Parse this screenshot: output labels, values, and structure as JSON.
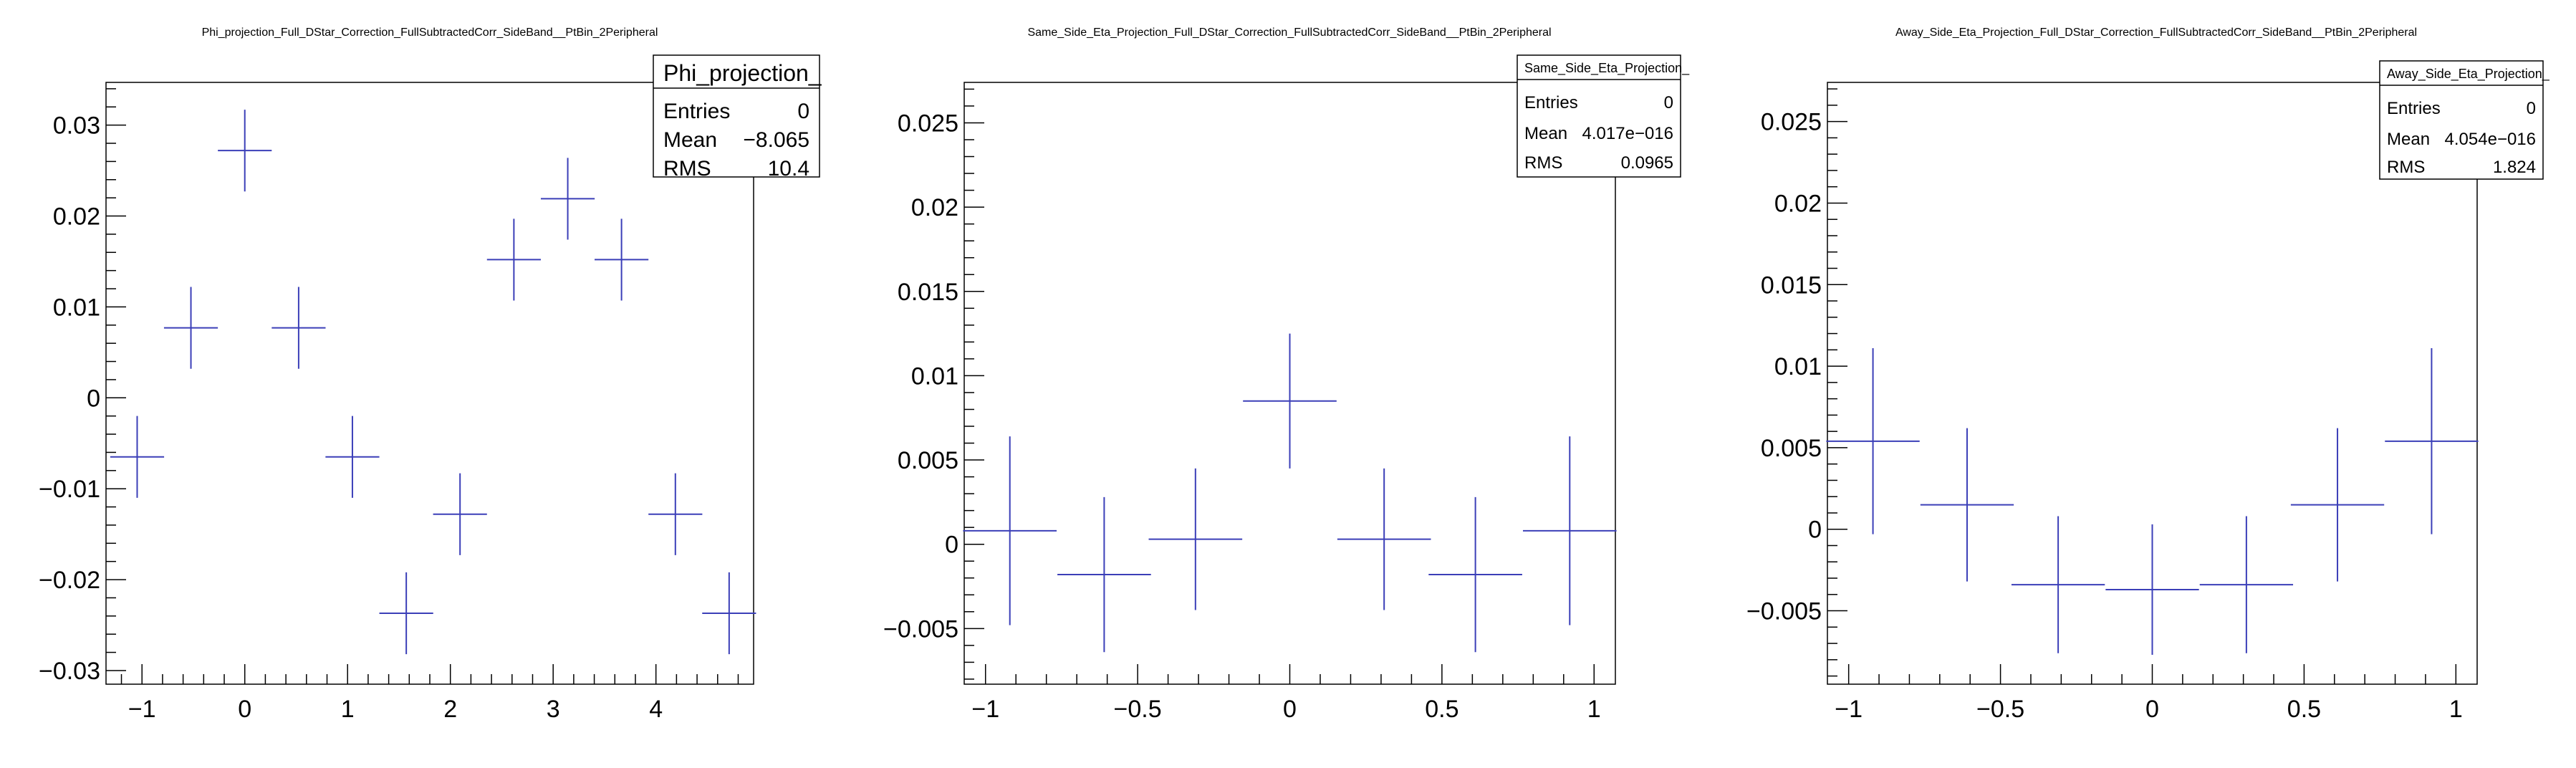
{
  "chart_data": [
    {
      "type": "scatter",
      "title": "Phi_projection_Full_DStar_Correction_FullSubtractedCorr_SideBand__PtBin_2Peripheral",
      "xlim": [
        -1.35,
        4.95
      ],
      "ylim": [
        -0.0315,
        0.0347
      ],
      "xticks": [
        -1,
        0,
        1,
        2,
        3,
        4
      ],
      "xtick_labels": [
        "−1",
        "0",
        "1",
        "2",
        "3",
        "4"
      ],
      "yticks": [
        -0.03,
        -0.02,
        -0.01,
        0,
        0.01,
        0.02,
        0.03
      ],
      "ytick_labels": [
        "−0.03",
        "−0.02",
        "−0.01",
        "0",
        "0.01",
        "0.02",
        "0.03"
      ],
      "xminor": 0.2,
      "yminor": 0.002,
      "stats": {
        "name": "Phi_projection_",
        "rows": [
          {
            "label": "Entries",
            "value": "0"
          },
          {
            "label": "Mean",
            "value": "−8.065"
          },
          {
            "label": "RMS",
            "value": "10.4"
          }
        ],
        "big": true
      },
      "bin_width": 0.524,
      "series": [
        {
          "color": "#3b3fb8",
          "points": [
            {
              "x": -1.047,
              "y": -0.0065,
              "yerr": 0.0045
            },
            {
              "x": -0.524,
              "y": 0.0077,
              "yerr": 0.0045
            },
            {
              "x": 0.0,
              "y": 0.0272,
              "yerr": 0.0045
            },
            {
              "x": 0.524,
              "y": 0.0077,
              "yerr": 0.0045
            },
            {
              "x": 1.047,
              "y": -0.0065,
              "yerr": 0.0045
            },
            {
              "x": 1.571,
              "y": -0.0237,
              "yerr": 0.0045
            },
            {
              "x": 2.094,
              "y": -0.0128,
              "yerr": 0.0045
            },
            {
              "x": 2.618,
              "y": 0.0152,
              "yerr": 0.0045
            },
            {
              "x": 3.142,
              "y": 0.0219,
              "yerr": 0.0045
            },
            {
              "x": 3.665,
              "y": 0.0152,
              "yerr": 0.0045
            },
            {
              "x": 4.189,
              "y": -0.0128,
              "yerr": 0.0045
            },
            {
              "x": 4.712,
              "y": -0.0237,
              "yerr": 0.0045
            }
          ]
        }
      ]
    },
    {
      "type": "scatter",
      "title": "Same_Side_Eta_Projection_Full_DStar_Correction_FullSubtractedCorr_SideBand__PtBin_2Peripheral",
      "xlim": [
        -1.07,
        1.07
      ],
      "ylim": [
        -0.0083,
        0.0274
      ],
      "xticks": [
        -1,
        -0.5,
        0,
        0.5,
        1
      ],
      "xtick_labels": [
        "−1",
        "−0.5",
        "0",
        "0.5",
        "1"
      ],
      "yticks": [
        -0.005,
        0,
        0.005,
        0.01,
        0.015,
        0.02,
        0.025
      ],
      "ytick_labels": [
        "−0.005",
        "0",
        "0.005",
        "0.01",
        "0.015",
        "0.02",
        "0.025"
      ],
      "xminor": 0.1,
      "yminor": 0.001,
      "stats": {
        "name": "Same_Side_Eta_Projection_",
        "rows": [
          {
            "label": "Entries",
            "value": "0"
          },
          {
            "label": "Mean",
            "value": "4.017e−016"
          },
          {
            "label": "RMS",
            "value": "0.0965"
          }
        ],
        "big": false
      },
      "bin_width": 0.3075,
      "series": [
        {
          "color": "#3b3fb8",
          "points": [
            {
              "x": -0.92,
              "y": 0.0008,
              "yerr": 0.0056
            },
            {
              "x": -0.61,
              "y": -0.0018,
              "yerr": 0.0046
            },
            {
              "x": -0.31,
              "y": 0.0003,
              "yerr": 0.0042
            },
            {
              "x": 0.0,
              "y": 0.0085,
              "yerr": 0.004
            },
            {
              "x": 0.31,
              "y": 0.0003,
              "yerr": 0.0042
            },
            {
              "x": 0.61,
              "y": -0.0018,
              "yerr": 0.0046
            },
            {
              "x": 0.92,
              "y": 0.0008,
              "yerr": 0.0056
            }
          ]
        }
      ]
    },
    {
      "type": "scatter",
      "title": "Away_Side_Eta_Projection_Full_DStar_Correction_FullSubtractedCorr_SideBand__PtBin_2Peripheral",
      "xlim": [
        -1.07,
        1.07
      ],
      "ylim": [
        -0.0095,
        0.0274
      ],
      "xticks": [
        -1,
        -0.5,
        0,
        0.5,
        1
      ],
      "xtick_labels": [
        "−1",
        "−0.5",
        "0",
        "0.5",
        "1"
      ],
      "yticks": [
        -0.005,
        0,
        0.005,
        0.01,
        0.015,
        0.02,
        0.025
      ],
      "ytick_labels": [
        "−0.005",
        "0",
        "0.005",
        "0.01",
        "0.015",
        "0.02",
        "0.025"
      ],
      "xminor": 0.1,
      "yminor": 0.001,
      "stats": {
        "name": "Away_Side_Eta_Projection_",
        "rows": [
          {
            "label": "Entries",
            "value": "0"
          },
          {
            "label": "Mean",
            "value": "4.054e−016"
          },
          {
            "label": "RMS",
            "value": "1.824"
          }
        ],
        "big": false
      },
      "bin_width": 0.3075,
      "series": [
        {
          "color": "#3b3fb8",
          "points": [
            {
              "x": -0.92,
              "y": 0.0054,
              "yerr": 0.0057
            },
            {
              "x": -0.61,
              "y": 0.0015,
              "yerr": 0.0047
            },
            {
              "x": -0.31,
              "y": -0.0034,
              "yerr": 0.0042
            },
            {
              "x": 0.0,
              "y": -0.0037,
              "yerr": 0.004
            },
            {
              "x": 0.31,
              "y": -0.0034,
              "yerr": 0.0042
            },
            {
              "x": 0.61,
              "y": 0.0015,
              "yerr": 0.0047
            },
            {
              "x": 0.92,
              "y": 0.0054,
              "yerr": 0.0057
            }
          ]
        }
      ]
    }
  ]
}
